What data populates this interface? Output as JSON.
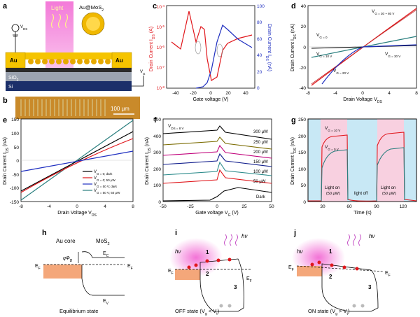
{
  "panels": {
    "a": {
      "letter": "a",
      "light": "Light",
      "np": "Au@MoS",
      "np_sub": "2",
      "vds": "V",
      "vds_sub": "DS",
      "vg": "V",
      "vg_sub": "G",
      "au": "Au",
      "sio2": "SiO",
      "sio2_sub": "2",
      "si": "Si",
      "colors": {
        "light": "#f26bd4",
        "au": "#f5c400",
        "sio2": "#9ba3b0",
        "si": "#1b2f6a"
      }
    },
    "b": {
      "letter": "b",
      "scale": "100 μm"
    },
    "c": {
      "letter": "c",
      "xlabel": "Gate voltage (V)",
      "ylabel_left": "Drain Current I",
      "ylabel_left_sub": "DS",
      "ylabel_left_unit": " (A)",
      "ylabel_right": "Drain Current I",
      "ylabel_right_sub": "DS",
      "ylabel_right_unit": " (nA)",
      "xticks": [
        "-40",
        "-20",
        "0",
        "20",
        "40"
      ],
      "yticks_left": [
        "10",
        "10",
        "10",
        "10",
        "10"
      ],
      "yticks_left_exp": [
        "-4",
        "-5",
        "-6",
        "-7",
        "-8"
      ],
      "yticks_right": [
        "0",
        "20",
        "40",
        "60",
        "80",
        "100"
      ]
    },
    "d": {
      "letter": "d",
      "xlabel": "Drain Voltage V",
      "xlabel_sub": "DS",
      "ylabel": "Drain Current I",
      "ylabel_sub": "DS",
      "ylabel_unit": " (nA)",
      "xticks": [
        "-8",
        "-4",
        "0",
        "4",
        "8"
      ],
      "yticks": [
        "-40",
        "-20",
        "0",
        "20",
        "40"
      ],
      "labels": [
        "V",
        "V",
        "V",
        "V",
        "V"
      ],
      "label_rest": [
        "G = 30 ~ 80 V",
        "G = 0",
        "G = 10 V",
        "G = 30 V",
        "G = 20 V"
      ]
    },
    "e": {
      "letter": "e",
      "xlabel": "Drain Voltage V",
      "xlabel_sub": "DS",
      "ylabel": "Drain Current I",
      "ylabel_sub": "DS",
      "ylabel_unit": " (nA)",
      "xticks": [
        "-8",
        "-4",
        "0",
        "4",
        "8"
      ],
      "yticks": [
        "-150",
        "-100",
        "-50",
        "0",
        "50",
        "100",
        "150"
      ],
      "legend": [
        "V",
        "V",
        "V",
        "V"
      ],
      "legend_rest": [
        "G = 0; dark",
        "G = 0; 50 μW",
        "G = 50 V; dark",
        "G = 50 V; 50 μW"
      ],
      "colors": [
        "#000000",
        "#e0161b",
        "#1f2fc0",
        "#2a7f7f"
      ]
    },
    "f": {
      "letter": "f",
      "xlabel": "Gate voltage V",
      "xlabel_sub": "G",
      "xlabel_unit": " (V)",
      "ylabel": "Drain Current I",
      "ylabel_sub": "DS",
      "ylabel_unit": " (nA)",
      "vds": "V",
      "vds_rest": "DS = 8 V",
      "xticks": [
        "-50",
        "-25",
        "0",
        "25",
        "50"
      ],
      "yticks": [
        "0",
        "100",
        "200",
        "300",
        "400",
        "500"
      ],
      "series": [
        "300 μW",
        "250 μW",
        "200 μW",
        "150 μW",
        "100 μW",
        "50 μW",
        "Dark"
      ],
      "colors": [
        "#000000",
        "#7a6b00",
        "#c0007a",
        "#0f1c8c",
        "#2a8a8a",
        "#e0161b",
        "#000000"
      ]
    },
    "g": {
      "letter": "g",
      "xlabel": "Time (s)",
      "ylabel": "Drain Current I",
      "ylabel_sub": "DS",
      "ylabel_unit": " (nA)",
      "xticks": [
        "30",
        "60",
        "90",
        "120"
      ],
      "yticks": [
        "0",
        "50",
        "100",
        "150",
        "200",
        "250"
      ],
      "v10": "V",
      "v10_rest": "G = 10 V",
      "v0": "V",
      "v0_rest": "G = 0 V",
      "on1": "Light on",
      "on1b": "(50 μW)",
      "off": "light off",
      "on2": "Light on",
      "on2b": "(50 μW)"
    },
    "h": {
      "letter": "h",
      "core": "Au core",
      "mos2": "MoS",
      "mos2_sub": "2",
      "ec": "E",
      "ec_sub": "C",
      "ev": "E",
      "ev_sub": "V",
      "ef": "E",
      "ef_sub": "F",
      "phi": "qΦ",
      "phi_sub": "B",
      "caption": "Equilibrium state"
    },
    "i": {
      "letter": "i",
      "hv": "hν",
      "n1": "1",
      "n2": "2",
      "n3": "3",
      "ef": "E",
      "ef_sub": "F",
      "caption": "OFF state (V",
      "caption_sub": "g",
      "caption_end": " < V",
      "caption_sub2": "t",
      "caption_close": ")"
    },
    "j": {
      "letter": "j",
      "hv": "hν",
      "n1": "1",
      "n2": "2",
      "n3": "3",
      "ef": "E",
      "ef_sub": "F",
      "caption": "ON state (V",
      "caption_sub": "g",
      "caption_end": " > V",
      "caption_sub2": "t",
      "caption_close": ")"
    }
  },
  "chart_data": [
    {
      "type": "line",
      "panel": "c",
      "x": [
        -50,
        -40,
        -30,
        -20,
        -15,
        -10,
        -5,
        0,
        5,
        10,
        15,
        20,
        30,
        40,
        50
      ],
      "series": [
        {
          "axis": "left",
          "values": [
            2e-06,
            1.5e-06,
            3e-05,
            1e-06,
            2e-06,
            3e-06,
            2e-06,
            1e-07,
            3e-08,
            1e-08,
            6e-08,
            4e-07,
            1e-06,
            1.5e-06,
            2e-06
          ]
        },
        {
          "axis": "right",
          "values": [
            0,
            0,
            0,
            0,
            0,
            2,
            6,
            15,
            45,
            78,
            80,
            75,
            68,
            62,
            55
          ]
        }
      ],
      "xlim": [
        -50,
        50
      ],
      "ylim_left": [
        1e-08,
        0.0001
      ],
      "ylim_right": [
        0,
        100
      ],
      "yscale_left": "log"
    },
    {
      "type": "line",
      "panel": "d",
      "x": [
        -8,
        -4,
        0,
        4,
        8
      ],
      "series": [
        {
          "values": [
            -38,
            -18,
            0,
            18,
            38
          ]
        },
        {
          "values": [
            -37,
            -17,
            0,
            17,
            37
          ]
        },
        {
          "values": [
            -10,
            -4,
            0,
            4,
            9
          ]
        },
        {
          "values": [
            -1,
            -0.5,
            0,
            0.5,
            1
          ]
        },
        {
          "values": [
            -36,
            -14,
            0,
            1,
            1.5
          ]
        }
      ],
      "xlim": [
        -8,
        8
      ],
      "ylim": [
        -40,
        40
      ]
    },
    {
      "type": "line",
      "panel": "e",
      "x": [
        -8,
        -4,
        0,
        4,
        8
      ],
      "series": [
        {
          "values": [
            -110,
            -45,
            0,
            45,
            105
          ]
        },
        {
          "values": [
            -115,
            -55,
            0,
            40,
            80
          ]
        },
        {
          "values": [
            -40,
            -18,
            0,
            18,
            32
          ]
        },
        {
          "values": [
            -140,
            -70,
            0,
            75,
            150
          ]
        }
      ],
      "xlim": [
        -8,
        8
      ],
      "ylim": [
        -150,
        150
      ]
    },
    {
      "type": "line",
      "panel": "f",
      "x": [
        -50,
        0,
        5,
        6,
        15,
        50
      ],
      "series": [
        {
          "values": [
            420,
            440,
            450,
            490,
            440,
            380
          ]
        },
        {
          "values": [
            350,
            370,
            380,
            430,
            380,
            330
          ]
        },
        {
          "values": [
            290,
            310,
            320,
            370,
            320,
            280
          ]
        },
        {
          "values": [
            240,
            260,
            270,
            310,
            270,
            230
          ]
        },
        {
          "values": [
            170,
            190,
            200,
            250,
            210,
            180
          ]
        },
        {
          "values": [
            120,
            140,
            150,
            190,
            160,
            140
          ]
        },
        {
          "values": [
            0,
            5,
            10,
            40,
            80,
            60
          ]
        }
      ],
      "xlim": [
        -50,
        50
      ],
      "ylim": [
        0,
        500
      ]
    },
    {
      "type": "line",
      "panel": "g",
      "x": [
        0,
        29,
        30,
        33,
        60,
        61,
        70,
        90,
        91,
        94,
        120,
        121,
        140
      ],
      "series": [
        {
          "values": [
            0,
            0,
            170,
            200,
            205,
            5,
            0,
            0,
            175,
            205,
            210,
            5,
            0
          ]
        },
        {
          "values": [
            0,
            0,
            120,
            150,
            160,
            3,
            0,
            0,
            115,
            155,
            165,
            3,
            0
          ]
        }
      ],
      "xlim": [
        15,
        135
      ],
      "ylim": [
        0,
        250
      ]
    }
  ]
}
